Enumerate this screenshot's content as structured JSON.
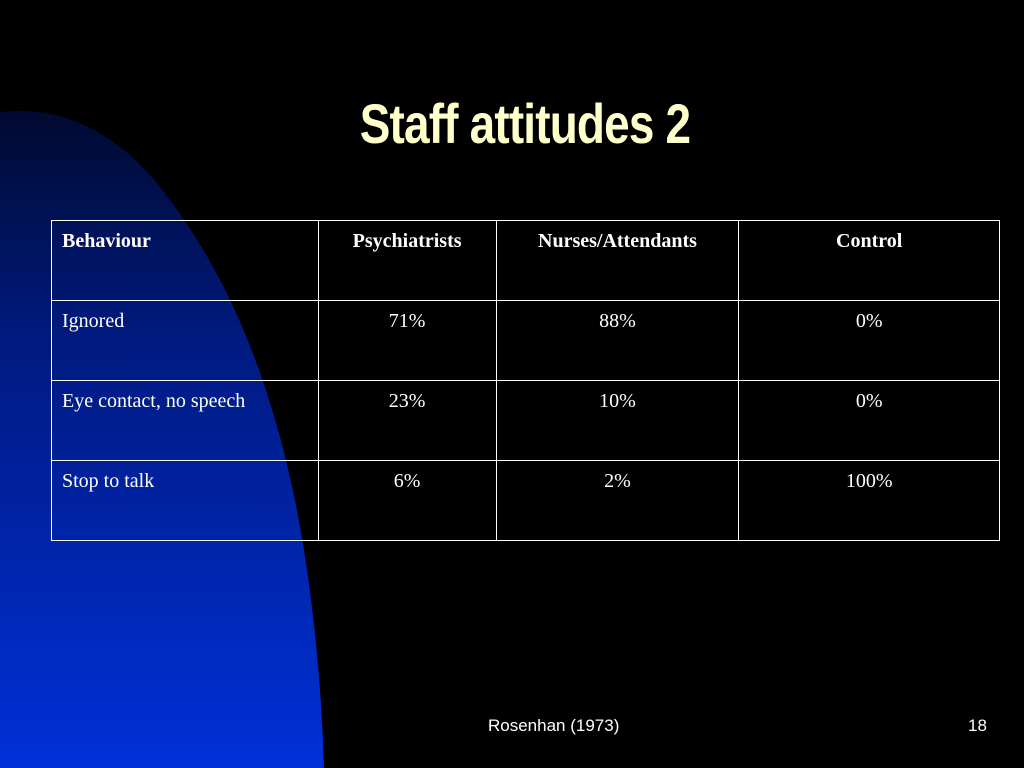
{
  "slide": {
    "title": "Staff attitudes 2",
    "colors": {
      "background": "#000000",
      "title": "#ffffcc",
      "text": "#ffffff",
      "accent_shape_top": "#000a30",
      "accent_shape_bottom": "#0030d8"
    },
    "table": {
      "headers": [
        "Behaviour",
        "Psychiatrists",
        "Nurses/Attendants",
        "Control"
      ],
      "rows": [
        [
          "Ignored",
          "71%",
          "88%",
          "0%"
        ],
        [
          "Eye contact, no speech",
          "23%",
          "10%",
          "0%"
        ],
        [
          "Stop to talk",
          "6%",
          "2%",
          "100%"
        ]
      ]
    },
    "footer": {
      "source": "Rosenhan (1973)",
      "page_number": "18"
    }
  }
}
